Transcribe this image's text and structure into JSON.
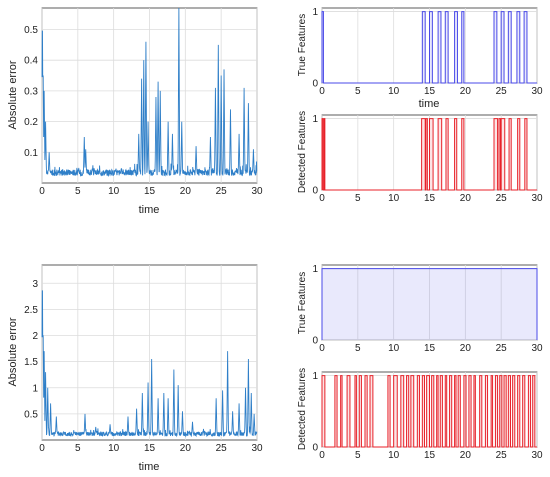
{
  "chart_data": [
    {
      "id": "top-left",
      "type": "line",
      "xlabel": "time",
      "ylabel": "Absolute error",
      "xlim": [
        0,
        30
      ],
      "ylim": [
        0,
        0.57
      ],
      "xticks": [
        0,
        5,
        10,
        15,
        20,
        25,
        30
      ],
      "yticks": [
        0.1,
        0.2,
        0.3,
        0.4,
        0.5
      ],
      "grid": true,
      "colors": {
        "line": "#2f7fc8"
      },
      "series": [
        {
          "base": 0.03,
          "noise": 0.02,
          "peaks": [
            [
              0.05,
              0.57
            ],
            [
              0.15,
              0.4
            ],
            [
              0.3,
              0.3
            ],
            [
              0.5,
              0.2
            ],
            [
              1.0,
              0.1
            ],
            [
              5.9,
              0.15
            ],
            [
              6.1,
              0.11
            ],
            [
              13.5,
              0.16
            ],
            [
              13.9,
              0.34
            ],
            [
              14.2,
              0.4
            ],
            [
              14.5,
              0.46
            ],
            [
              14.8,
              0.2
            ],
            [
              15.9,
              0.28
            ],
            [
              16.2,
              0.33
            ],
            [
              16.5,
              0.3
            ],
            [
              17.6,
              0.2
            ],
            [
              18.2,
              0.16
            ],
            [
              19.1,
              0.57
            ],
            [
              19.5,
              0.2
            ],
            [
              21.5,
              0.12
            ],
            [
              23.5,
              0.15
            ],
            [
              24.2,
              0.31
            ],
            [
              24.6,
              0.45
            ],
            [
              25.0,
              0.35
            ],
            [
              25.4,
              0.37
            ],
            [
              26.3,
              0.24
            ],
            [
              27.5,
              0.16
            ],
            [
              28.2,
              0.31
            ],
            [
              28.8,
              0.26
            ],
            [
              29.5,
              0.11
            ]
          ]
        }
      ]
    },
    {
      "id": "top-right-true",
      "type": "step",
      "xlabel": "time",
      "ylabel": "True Features",
      "xlim": [
        0,
        30
      ],
      "ylim": [
        0,
        1.05
      ],
      "xticks": [
        0,
        5,
        10,
        15,
        20,
        25,
        30
      ],
      "yticks": [
        0,
        1
      ],
      "grid": true,
      "colors": {
        "line": "#4a4ae8"
      },
      "series": [
        {
          "pulses": [
            [
              0,
              0.2
            ],
            [
              14.0,
              14.4
            ],
            [
              15.0,
              15.4
            ],
            [
              16.2,
              16.6
            ],
            [
              17.2,
              17.6
            ],
            [
              18.5,
              18.9
            ],
            [
              19.5,
              19.8
            ],
            [
              24.0,
              24.4
            ],
            [
              25.0,
              25.4
            ],
            [
              26.0,
              26.4
            ],
            [
              27.2,
              27.6
            ],
            [
              28.2,
              28.6
            ]
          ]
        }
      ]
    },
    {
      "id": "top-right-detected",
      "type": "step",
      "xlabel": "",
      "ylabel": "Detected Features",
      "xlim": [
        0,
        30
      ],
      "ylim": [
        0,
        1.05
      ],
      "xticks": [
        0,
        5,
        10,
        15,
        20,
        25,
        30
      ],
      "yticks": [
        0,
        1
      ],
      "grid": true,
      "colors": {
        "line": "#e8222a"
      },
      "series": [
        {
          "pulses": [
            [
              0,
              0.15
            ],
            [
              0.3,
              0.4
            ],
            [
              13.9,
              14.4
            ],
            [
              14.5,
              14.7
            ],
            [
              15.0,
              15.5
            ],
            [
              16.2,
              16.7
            ],
            [
              17.3,
              17.6
            ],
            [
              18.5,
              18.8
            ],
            [
              19.5,
              19.8
            ],
            [
              24.0,
              24.5
            ],
            [
              24.7,
              24.9
            ],
            [
              25.0,
              25.5
            ],
            [
              26.1,
              26.4
            ],
            [
              27.3,
              27.6
            ],
            [
              28.3,
              28.6
            ]
          ]
        }
      ]
    },
    {
      "id": "bottom-left",
      "type": "line",
      "xlabel": "time",
      "ylabel": "Absolute error",
      "xlim": [
        0,
        30
      ],
      "ylim": [
        0,
        3.35
      ],
      "xticks": [
        0,
        5,
        10,
        15,
        20,
        25,
        30
      ],
      "yticks": [
        0.5,
        1,
        1.5,
        2,
        2.5,
        3
      ],
      "grid": true,
      "colors": {
        "line": "#2f7fc8"
      },
      "series": [
        {
          "base": 0.1,
          "noise": 0.08,
          "peaks": [
            [
              0.05,
              3.3
            ],
            [
              0.15,
              2.3
            ],
            [
              0.3,
              1.7
            ],
            [
              0.5,
              1.3
            ],
            [
              0.8,
              1.0
            ],
            [
              1.2,
              0.7
            ],
            [
              2.0,
              0.45
            ],
            [
              6.0,
              0.5
            ],
            [
              7.5,
              0.25
            ],
            [
              9.5,
              0.3
            ],
            [
              12.0,
              0.45
            ],
            [
              13.2,
              0.6
            ],
            [
              14.0,
              0.9
            ],
            [
              14.8,
              1.1
            ],
            [
              15.3,
              1.55
            ],
            [
              16.2,
              0.8
            ],
            [
              17.0,
              0.9
            ],
            [
              17.6,
              0.8
            ],
            [
              18.4,
              1.35
            ],
            [
              19.0,
              1.05
            ],
            [
              19.6,
              0.55
            ],
            [
              21.0,
              0.35
            ],
            [
              24.3,
              0.8
            ],
            [
              25.2,
              0.95
            ],
            [
              25.9,
              1.7
            ],
            [
              26.6,
              0.55
            ],
            [
              27.5,
              0.7
            ],
            [
              28.4,
              1.0
            ],
            [
              28.8,
              1.55
            ],
            [
              29.2,
              0.9
            ],
            [
              29.6,
              0.5
            ]
          ]
        }
      ]
    },
    {
      "id": "bottom-right-true",
      "type": "step",
      "xlabel": "",
      "ylabel": "True Features",
      "xlim": [
        0,
        30
      ],
      "ylim": [
        0,
        1.05
      ],
      "xticks": [
        0,
        5,
        10,
        15,
        20,
        25,
        30
      ],
      "yticks": [
        0,
        1
      ],
      "grid": true,
      "colors": {
        "line": "#4a4ae8"
      },
      "series": [
        {
          "pulses": [
            [
              0,
              30
            ]
          ]
        }
      ]
    },
    {
      "id": "bottom-right-detected",
      "type": "step",
      "xlabel": "",
      "ylabel": "Detected Features",
      "xlim": [
        0,
        30
      ],
      "ylim": [
        0,
        1.05
      ],
      "xticks": [
        0,
        5,
        10,
        15,
        20,
        25,
        30
      ],
      "yticks": [
        0,
        1
      ],
      "grid": true,
      "colors": {
        "line": "#e8222a"
      },
      "series": [
        {
          "pulses": [
            [
              0,
              0.4
            ],
            [
              1.8,
              2.1
            ],
            [
              2.6,
              2.8
            ],
            [
              3.5,
              3.9
            ],
            [
              4.6,
              4.8
            ],
            [
              5.2,
              5.5
            ],
            [
              6.0,
              6.3
            ],
            [
              6.7,
              7.1
            ],
            [
              9.2,
              9.5
            ],
            [
              10.0,
              10.5
            ],
            [
              11.0,
              11.4
            ],
            [
              11.8,
              12.1
            ],
            [
              12.4,
              12.8
            ],
            [
              13.3,
              13.6
            ],
            [
              14.0,
              14.3
            ],
            [
              14.6,
              15.0
            ],
            [
              15.3,
              15.6
            ],
            [
              16.0,
              16.2
            ],
            [
              16.5,
              16.8
            ],
            [
              17.2,
              17.4
            ],
            [
              17.8,
              18.1
            ],
            [
              18.5,
              18.7
            ],
            [
              19.0,
              19.3
            ],
            [
              19.8,
              20.1
            ],
            [
              20.5,
              20.8
            ],
            [
              21.2,
              21.4
            ],
            [
              22.0,
              22.3
            ],
            [
              22.8,
              23.1
            ],
            [
              23.6,
              23.8
            ],
            [
              24.2,
              24.5
            ],
            [
              24.8,
              25.1
            ],
            [
              25.4,
              25.7
            ],
            [
              26.0,
              26.3
            ],
            [
              26.6,
              26.9
            ],
            [
              27.3,
              27.6
            ],
            [
              28.0,
              28.3
            ],
            [
              28.8,
              29.1
            ],
            [
              29.4,
              29.7
            ]
          ]
        }
      ]
    }
  ]
}
